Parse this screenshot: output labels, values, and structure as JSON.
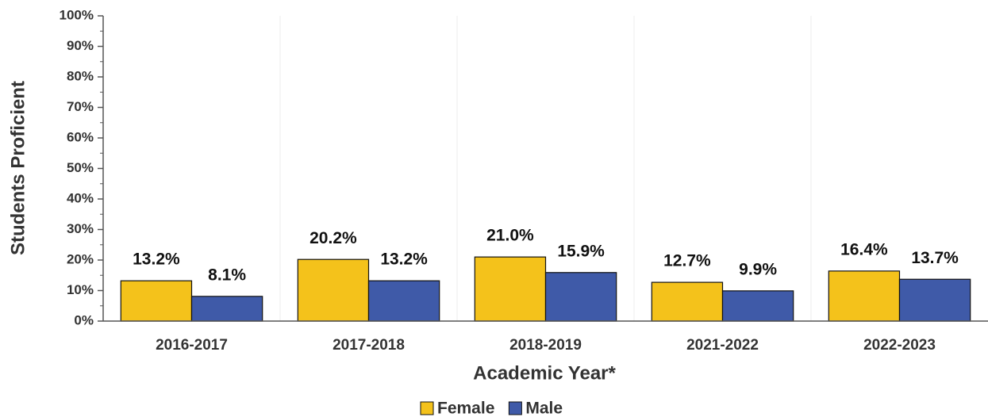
{
  "chart_data": {
    "type": "bar",
    "y_label": "Students Proficient",
    "x_label": "Academic Year*",
    "categories": [
      "2016-2017",
      "2017-2018",
      "2018-2019",
      "2021-2022",
      "2022-2023"
    ],
    "series": [
      {
        "name": "Female",
        "color": "#f4c21b",
        "values": [
          13.2,
          20.2,
          21.0,
          12.7,
          16.4
        ],
        "value_labels": [
          "13.2%",
          "20.2%",
          "21.0%",
          "12.7%",
          "16.4%"
        ]
      },
      {
        "name": "Male",
        "color": "#3f5aa8",
        "values": [
          8.1,
          13.2,
          15.9,
          9.9,
          13.7
        ],
        "value_labels": [
          "8.1%",
          "13.2%",
          "15.9%",
          "9.9%",
          "13.7%"
        ]
      }
    ],
    "ylim": [
      0,
      100
    ],
    "yticks": [
      {
        "value": 0,
        "label": "0%"
      },
      {
        "value": 10,
        "label": "10%"
      },
      {
        "value": 20,
        "label": "20%"
      },
      {
        "value": 30,
        "label": "30%"
      },
      {
        "value": 40,
        "label": "40%"
      },
      {
        "value": 50,
        "label": "50%"
      },
      {
        "value": 60,
        "label": "60%"
      },
      {
        "value": 70,
        "label": "70%"
      },
      {
        "value": 80,
        "label": "80%"
      },
      {
        "value": 90,
        "label": "90%"
      },
      {
        "value": 100,
        "label": "100%"
      }
    ],
    "legend": "bottom"
  }
}
